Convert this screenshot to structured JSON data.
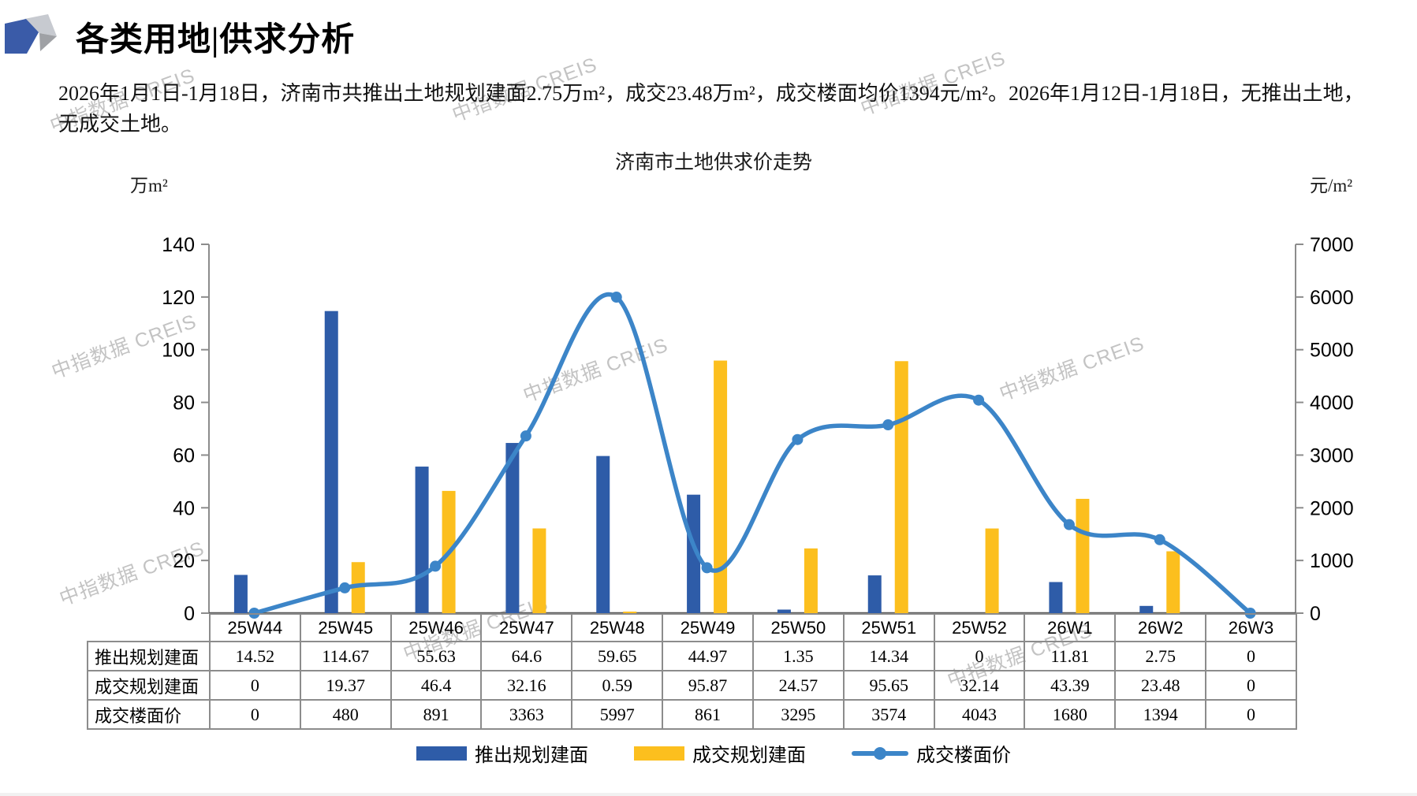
{
  "page": {
    "section_title": "各类用地|供求分析",
    "summary": "2026年1月1日-1月18日，济南市共推出土地规划建面2.75万m²，成交23.48万m²，成交楼面均价1394元/m²。2026年1月12日-1月18日，无推出土地，无成交土地。",
    "watermark_text": "中指数据 CREIS"
  },
  "chart_data": {
    "type": "combo-bar-line",
    "title": "济南市土地供求价走势",
    "categories": [
      "25W44",
      "25W45",
      "25W46",
      "25W47",
      "25W48",
      "25W49",
      "25W50",
      "25W51",
      "25W52",
      "26W1",
      "26W2",
      "26W3"
    ],
    "series": [
      {
        "name": "推出规划建面",
        "type": "bar",
        "axis": "left",
        "color": "#2E5CA8",
        "values": [
          14.52,
          114.67,
          55.63,
          64.6,
          59.65,
          44.97,
          1.35,
          14.34,
          0,
          11.81,
          2.75,
          0
        ]
      },
      {
        "name": "成交规划建面",
        "type": "bar",
        "axis": "left",
        "color": "#FCBF1E",
        "values": [
          0,
          19.37,
          46.4,
          32.16,
          0.59,
          95.87,
          24.57,
          95.65,
          32.14,
          43.39,
          23.48,
          0
        ]
      },
      {
        "name": "成交楼面价",
        "type": "line",
        "axis": "right",
        "color": "#3C85C8",
        "values": [
          0,
          480,
          891,
          3363,
          5997,
          861,
          3295,
          3574,
          4043,
          1680,
          1394,
          0
        ]
      }
    ],
    "left_axis": {
      "label": "万m²",
      "min": 0,
      "max": 140,
      "step": 20
    },
    "right_axis": {
      "label": "元/m²",
      "min": 0,
      "max": 7000,
      "step": 1000
    },
    "grid": false,
    "legend_position": "bottom"
  }
}
